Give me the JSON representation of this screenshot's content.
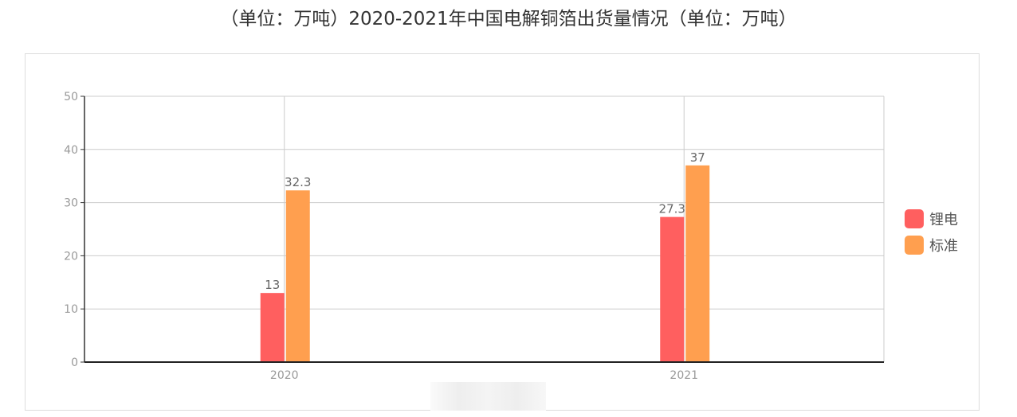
{
  "chart_data": {
    "type": "bar",
    "title": "（单位：万吨）2020-2021年中国电解铜箔出货量情况（单位：万吨）",
    "categories": [
      "2020",
      "2021"
    ],
    "series": [
      {
        "name": "锂电",
        "values": [
          13,
          27.3
        ],
        "color": "#ff5f5f"
      },
      {
        "name": "标准",
        "values": [
          32.3,
          37
        ],
        "color": "#ff9f4f"
      }
    ],
    "value_labels": [
      [
        "13",
        "27.3"
      ],
      [
        "32.3",
        "37"
      ]
    ],
    "ylim": [
      0,
      50
    ],
    "yticks": [
      "0",
      "10",
      "20",
      "30",
      "40",
      "50"
    ],
    "grid": true,
    "legend_position": "right"
  }
}
